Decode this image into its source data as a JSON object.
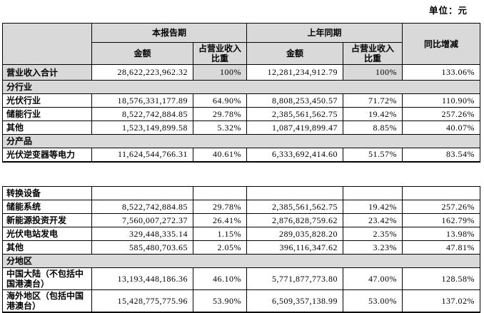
{
  "page": {
    "unit_label": "单位：元"
  },
  "colors": {
    "shaded_cell_bg": "#d9d9d9",
    "border": "#000000",
    "text": "#000000",
    "page_bg": "#ffffff"
  },
  "columns": {
    "current_period": "本报告期",
    "prior_period": "上年同期",
    "yoy": "同比增减",
    "amount": "金额",
    "pct_of_revenue": "占营业收入比重"
  },
  "table1": {
    "rows": [
      {
        "type": "data",
        "first": true,
        "label": "营业收入合计",
        "label_shaded": true,
        "shaded_cells": [
          1,
          3
        ],
        "cells": [
          "28,622,223,962.32",
          "100%",
          "12,281,234,912.79",
          "100%",
          "133.06%"
        ]
      },
      {
        "type": "section",
        "label": "分行业"
      },
      {
        "type": "data",
        "label": "光伏行业",
        "cells": [
          "18,576,331,177.89",
          "64.90%",
          "8,808,253,450.57",
          "71.72%",
          "110.90%"
        ]
      },
      {
        "type": "data",
        "label": "储能行业",
        "cells": [
          "8,522,742,884.85",
          "29.78%",
          "2,385,561,562.75",
          "19.42%",
          "257.26%"
        ]
      },
      {
        "type": "data",
        "label": "其他",
        "cells": [
          "1,523,149,899.58",
          "5.32%",
          "1,087,419,899.47",
          "8.85%",
          "40.07%"
        ]
      },
      {
        "type": "section",
        "label": "分产品"
      },
      {
        "type": "data",
        "label": "光伏逆变器等电力",
        "cells": [
          "11,624,544,766.31",
          "40.61%",
          "6,333,692,414.60",
          "51.57%",
          "83.54%"
        ]
      }
    ]
  },
  "table2": {
    "rows": [
      {
        "type": "data",
        "label": "转换设备",
        "cells": [
          "",
          "",
          "",
          "",
          ""
        ]
      },
      {
        "type": "data",
        "label": "储能系统",
        "cells": [
          "8,522,742,884.85",
          "29.78%",
          "2,385,561,562.75",
          "19.42%",
          "257.26%"
        ]
      },
      {
        "type": "data",
        "label": "新能源投资开发",
        "cells": [
          "7,560,007,272.37",
          "26.41%",
          "2,876,828,759.62",
          "23.42%",
          "162.79%"
        ]
      },
      {
        "type": "data",
        "label": "光伏电站发电",
        "cells": [
          "329,448,335.14",
          "1.15%",
          "289,035,828.20",
          "2.35%",
          "13.98%"
        ]
      },
      {
        "type": "data",
        "label": "其他",
        "cells": [
          "585,480,703.65",
          "2.05%",
          "396,116,347.62",
          "3.23%",
          "47.81%"
        ]
      },
      {
        "type": "section",
        "label": "分地区"
      },
      {
        "type": "data",
        "label": "中国大陆（不包括中国港澳台）",
        "cells": [
          "13,193,448,186.36",
          "46.10%",
          "5,771,877,773.80",
          "47.00%",
          "128.58%"
        ]
      },
      {
        "type": "data",
        "label": "海外地区（包括中国港澳台）",
        "cells": [
          "15,428,775,775.96",
          "53.90%",
          "6,509,357,138.99",
          "53.00%",
          "137.02%"
        ]
      }
    ]
  }
}
